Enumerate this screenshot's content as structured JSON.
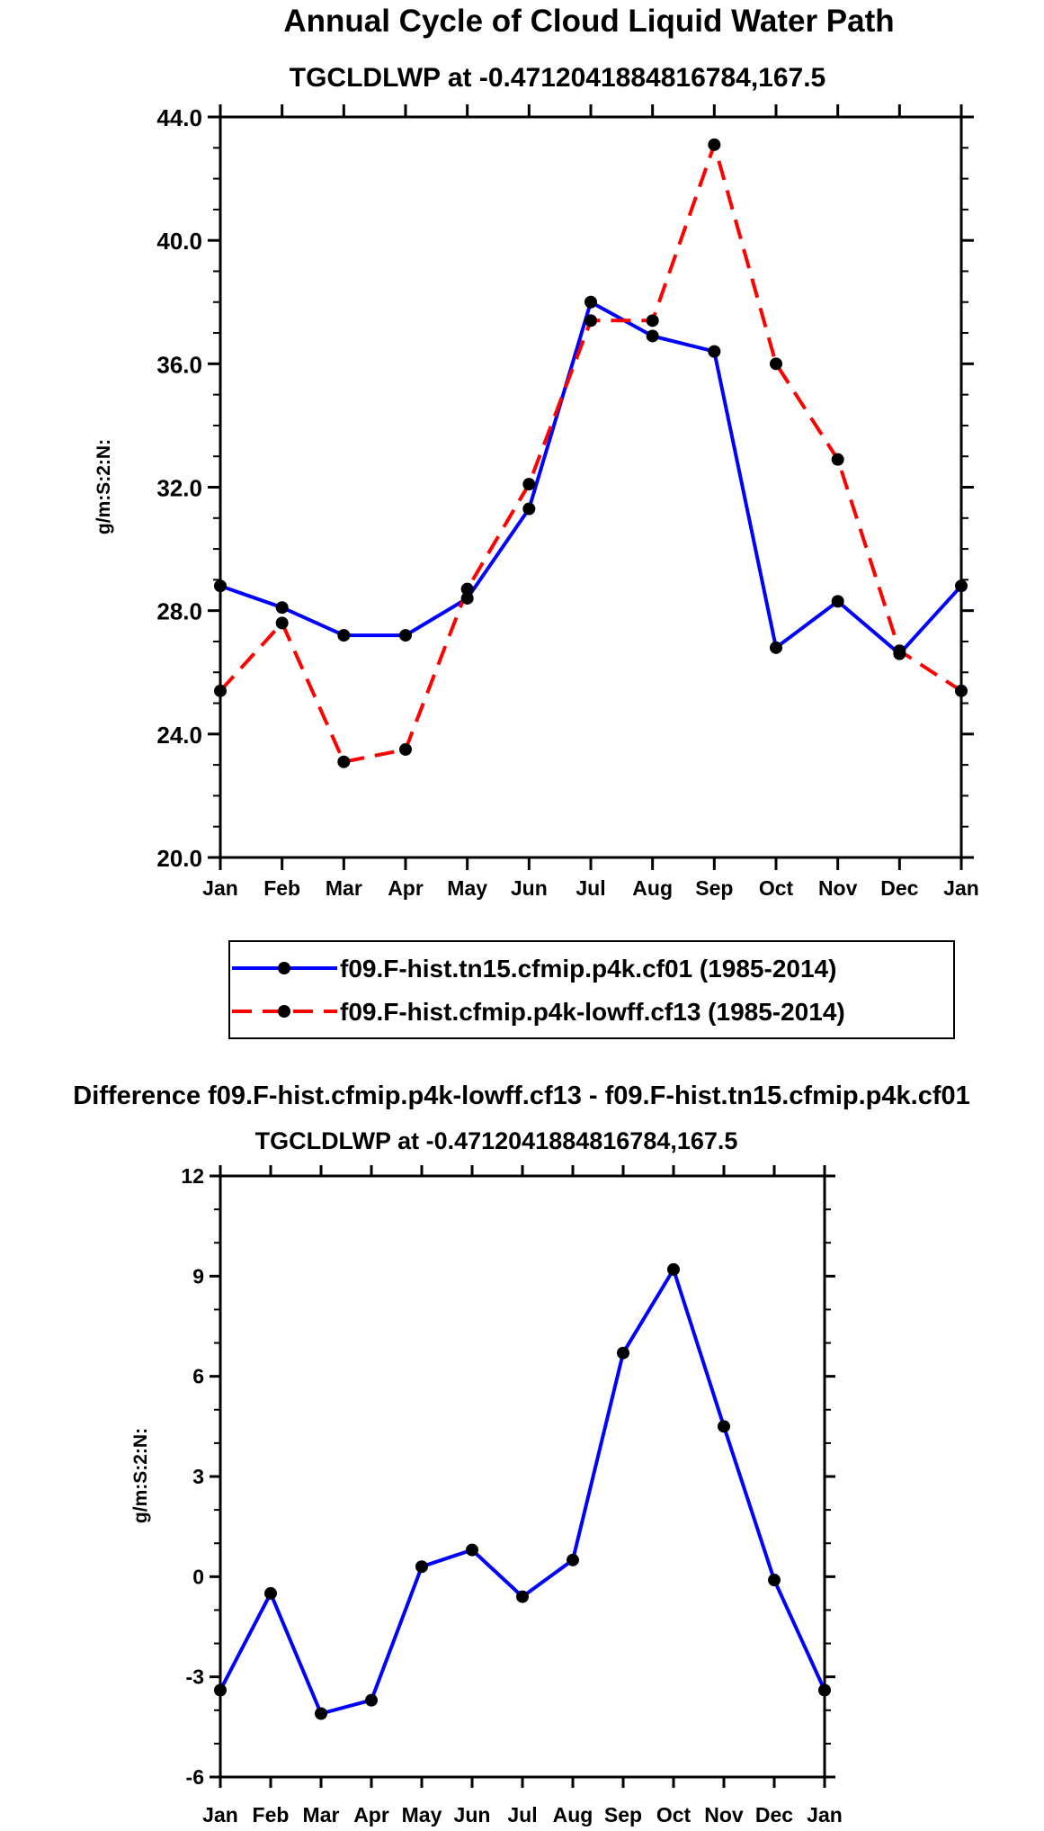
{
  "chart_data": [
    {
      "type": "line",
      "title": "Annual Cycle of Cloud Liquid Water Path",
      "subtitle": "TGCLDLWP at -0.4712041884816784,167.5",
      "xlabel": "",
      "ylabel": "g/m:S:2:N:",
      "categories": [
        "Jan",
        "Feb",
        "Mar",
        "Apr",
        "May",
        "Jun",
        "Jul",
        "Aug",
        "Sep",
        "Oct",
        "Nov",
        "Dec",
        "Jan"
      ],
      "ylim": [
        20.0,
        44.0
      ],
      "yticks": [
        "20.0",
        "24.0",
        "28.0",
        "32.0",
        "36.0",
        "40.0",
        "44.0"
      ],
      "series": [
        {
          "name": "f09.F-hist.tn15.cfmip.p4k.cf01 (1985-2014)",
          "color": "#0000ff",
          "dash": "solid",
          "values": [
            28.8,
            28.1,
            27.2,
            27.2,
            28.4,
            31.3,
            38.0,
            36.9,
            36.4,
            26.8,
            28.3,
            26.6,
            28.8
          ]
        },
        {
          "name": "f09.F-hist.cfmip.p4k-lowff.cf13 (1985-2014)",
          "color": "#ff0000",
          "dash": "dashed",
          "values": [
            25.4,
            27.6,
            23.1,
            23.5,
            28.7,
            32.1,
            37.4,
            37.4,
            43.1,
            36.0,
            32.9,
            26.7,
            25.4
          ]
        }
      ]
    },
    {
      "type": "line",
      "title": "Difference f09.F-hist.cfmip.p4k-lowff.cf13 - f09.F-hist.tn15.cfmip.p4k.cf01",
      "subtitle": "TGCLDLWP at -0.4712041884816784,167.5",
      "xlabel": "",
      "ylabel": "g/m:S:2:N:",
      "categories": [
        "Jan",
        "Feb",
        "Mar",
        "Apr",
        "May",
        "Jun",
        "Jul",
        "Aug",
        "Sep",
        "Oct",
        "Nov",
        "Dec",
        "Jan"
      ],
      "ylim": [
        -6,
        12
      ],
      "yticks": [
        "-6",
        "-3",
        "0",
        "3",
        "6",
        "9",
        "12"
      ],
      "series": [
        {
          "name": "difference",
          "color": "#0000ff",
          "dash": "solid",
          "values": [
            -3.4,
            -0.5,
            -4.1,
            -3.7,
            0.3,
            0.8,
            -0.6,
            0.5,
            6.7,
            9.2,
            4.5,
            -0.1,
            -3.4
          ]
        }
      ]
    }
  ]
}
